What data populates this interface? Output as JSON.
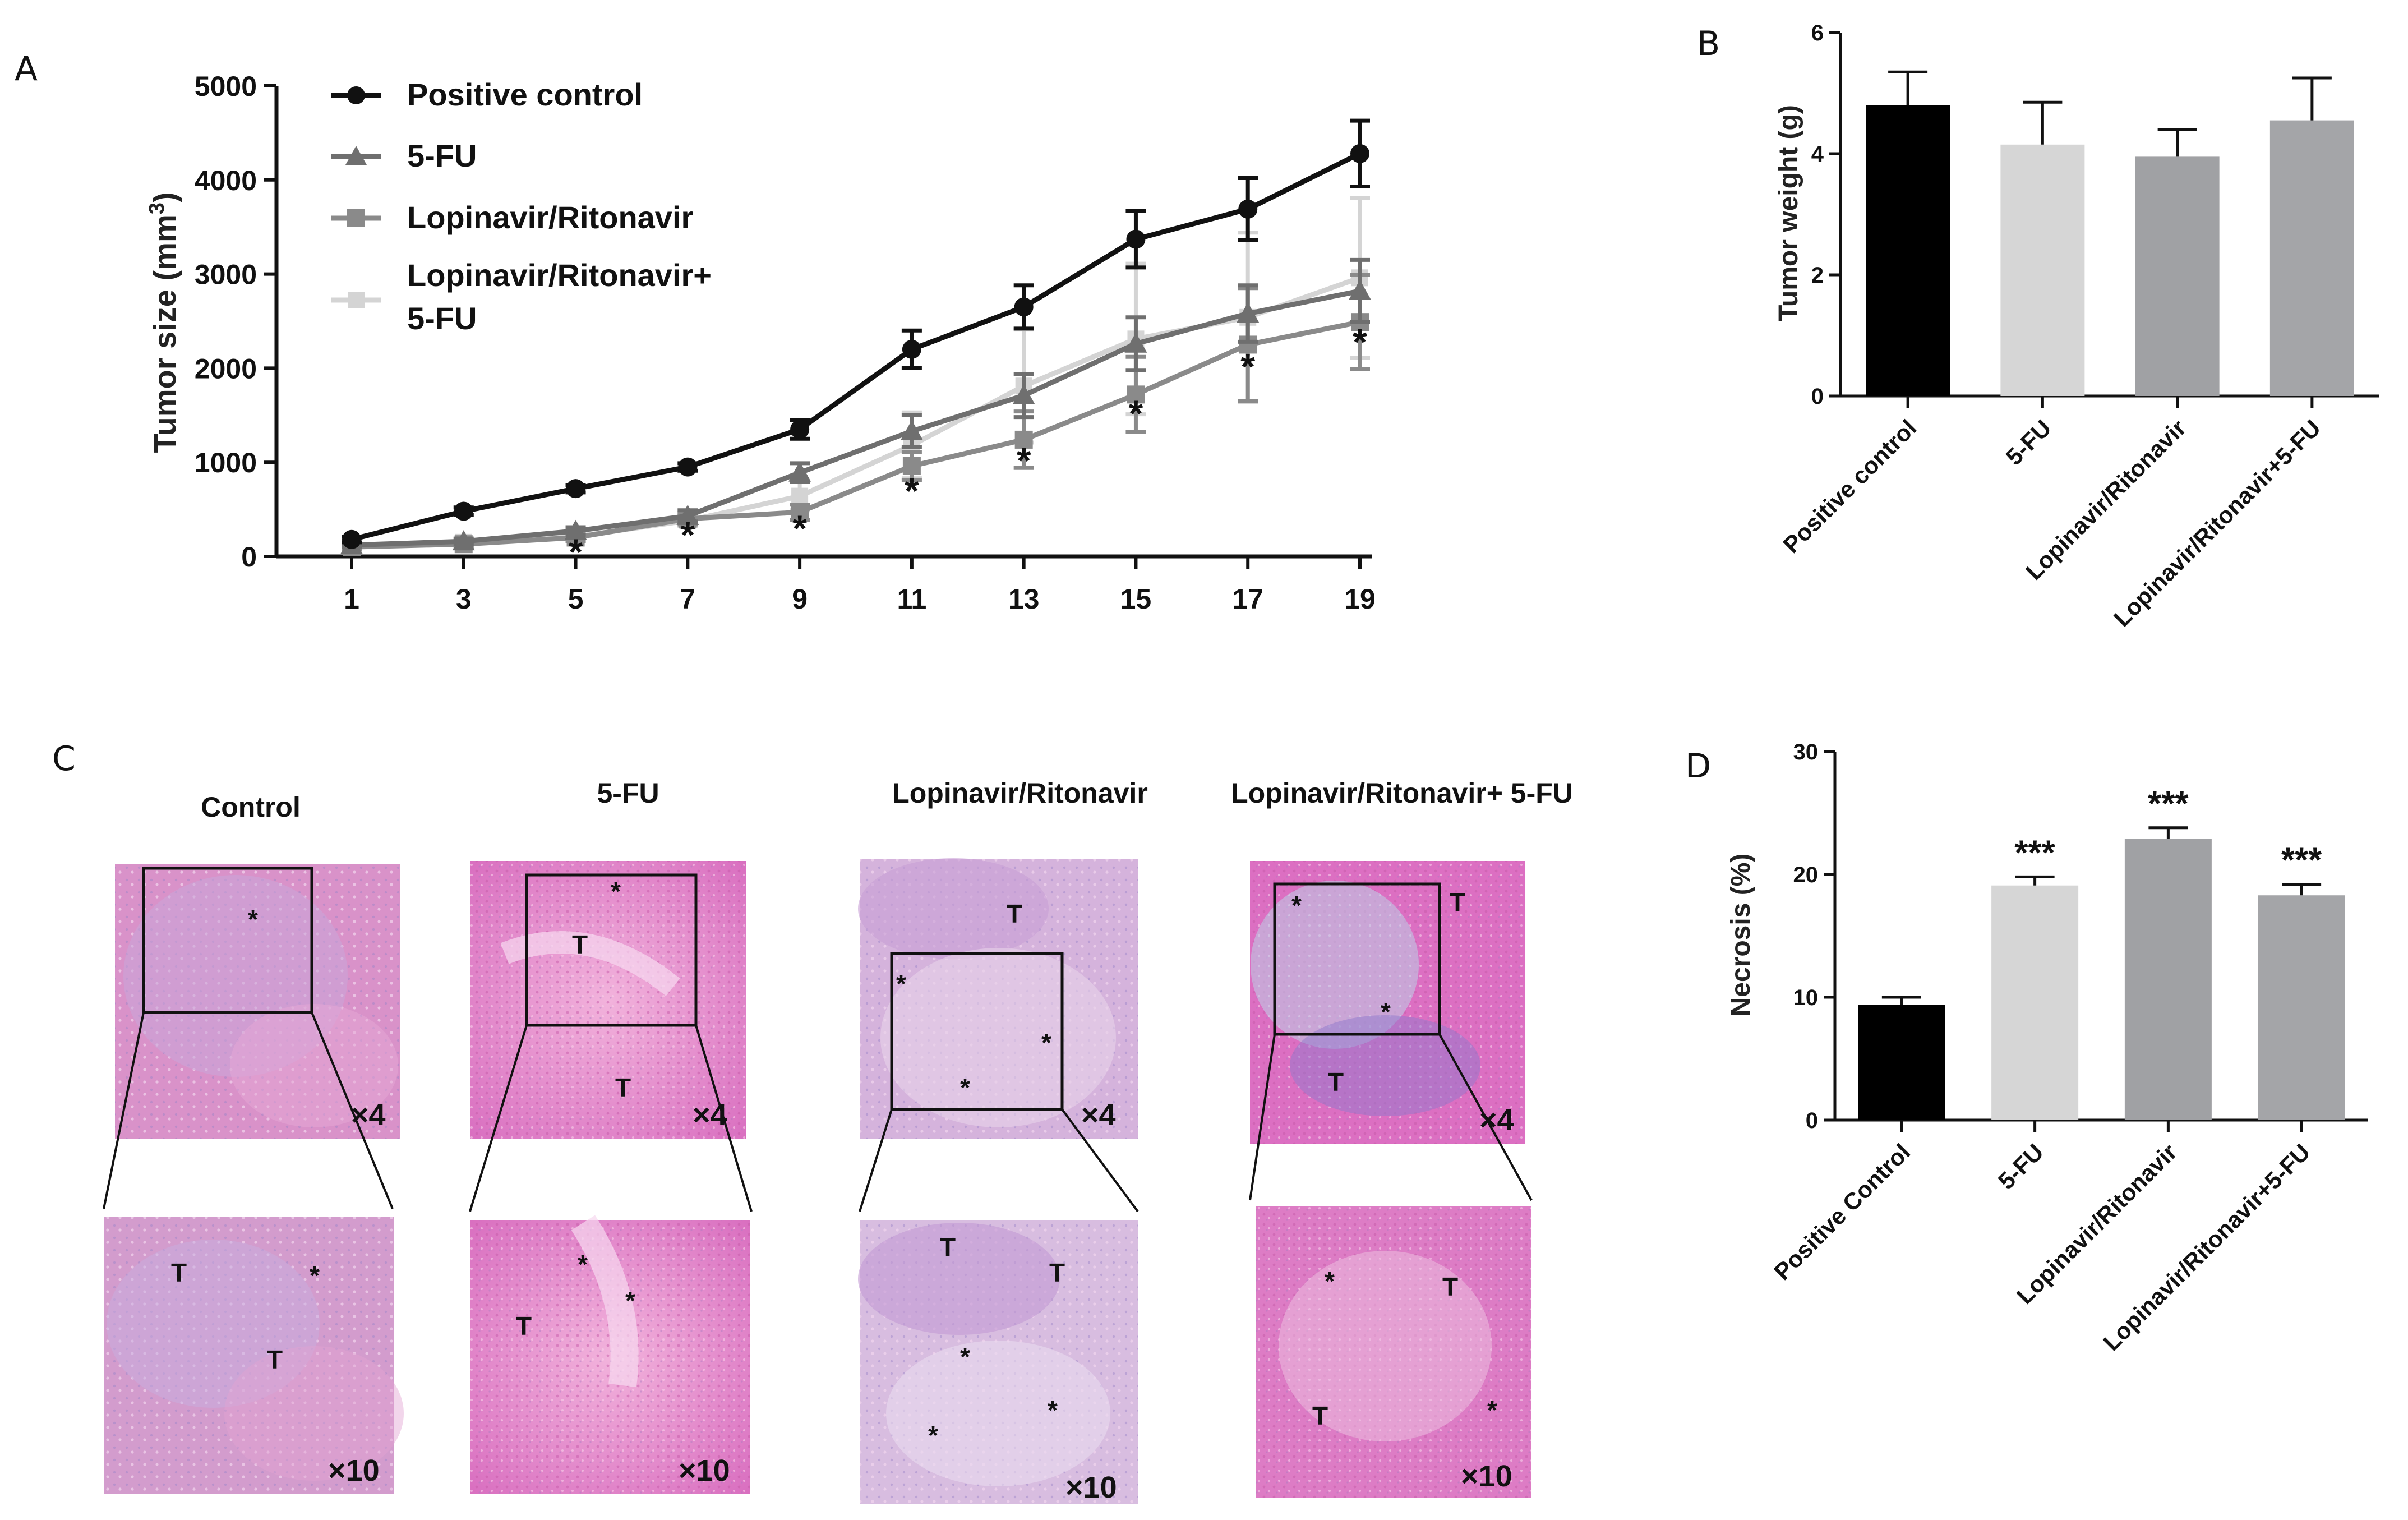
{
  "panels": {
    "a": "A",
    "b": "B",
    "c": "C",
    "d": "D"
  },
  "colors": {
    "positive_control": "#111111",
    "five_fu_line": "#6f6f6f",
    "lopinavir_line": "#8a8a8a",
    "combo_line": "#d4d4d4",
    "bar_black": "#000000",
    "bar_light": "#d6d6d6",
    "bar_mid": "#a0a1a4",
    "bar_gray": "#a4a5a8",
    "he_pink": "#e386c6",
    "he_purple": "#b9a0d6"
  },
  "chart_data": [
    {
      "id": "A",
      "type": "line",
      "title": "",
      "xlabel": "",
      "ylabel_main": "Tumor size (mm",
      "ylabel_sup": "3",
      "ylabel_tail": ")",
      "x": [
        1,
        3,
        5,
        7,
        9,
        11,
        13,
        15,
        17,
        19
      ],
      "xlim": [
        1,
        19
      ],
      "ylim": [
        0,
        5000
      ],
      "yticks": [
        0,
        1000,
        2000,
        3000,
        4000,
        5000
      ],
      "legend_position": "top-left",
      "series": [
        {
          "name": "Positive control",
          "marker": "circle",
          "color": "#111111",
          "values": [
            180,
            480,
            720,
            950,
            1350,
            2200,
            2650,
            3370,
            3690,
            4280
          ],
          "errors": [
            30,
            40,
            40,
            40,
            100,
            200,
            230,
            300,
            330,
            350
          ]
        },
        {
          "name": "5-FU",
          "marker": "triangle",
          "color": "#6f6f6f",
          "values": [
            120,
            160,
            270,
            430,
            890,
            1330,
            1710,
            2260,
            2580,
            2820
          ],
          "errors": [
            20,
            30,
            40,
            60,
            100,
            170,
            230,
            280,
            300,
            330
          ]
        },
        {
          "name": "Lopinavir/Ritonavir",
          "marker": "square",
          "color": "#8a8a8a",
          "values": [
            100,
            130,
            200,
            400,
            470,
            960,
            1240,
            1720,
            2250,
            2490
          ],
          "errors": [
            20,
            30,
            40,
            60,
            80,
            150,
            300,
            400,
            600,
            500
          ]
        },
        {
          "name": "Lopinavir/Ritonavir+",
          "name_line2": "5-FU",
          "marker": "cross",
          "color": "#d4d4d4",
          "values": [
            110,
            150,
            210,
            380,
            640,
            1180,
            1810,
            2310,
            2540,
            2960
          ],
          "errors": [
            20,
            30,
            40,
            60,
            150,
            350,
            600,
            800,
            900,
            850
          ]
        }
      ],
      "annotations": [
        {
          "x": 5,
          "y": 150,
          "text": "*"
        },
        {
          "x": 7,
          "y": 330,
          "text": "*"
        },
        {
          "x": 9,
          "y": 400,
          "text": "*"
        },
        {
          "x": 11,
          "y": 800,
          "text": "*"
        },
        {
          "x": 13,
          "y": 1120,
          "text": "*"
        },
        {
          "x": 15,
          "y": 1620,
          "text": "*"
        },
        {
          "x": 17,
          "y": 2120,
          "text": "*"
        },
        {
          "x": 19,
          "y": 2380,
          "text": "*"
        }
      ]
    },
    {
      "id": "B",
      "type": "bar",
      "ylabel": "Tumor weight (g)",
      "ylim": [
        0,
        6
      ],
      "yticks": [
        0,
        2,
        4,
        6
      ],
      "categories": [
        "Positive control",
        "5-FU",
        "Lopinavir/Ritonavir",
        "Lopinavir/Ritonavir+5-FU"
      ],
      "values": [
        4.8,
        4.15,
        3.95,
        4.55
      ],
      "errors": [
        0.55,
        0.7,
        0.45,
        0.7
      ],
      "bar_colors": [
        "#000000",
        "#d6d6d6",
        "#a0a1a4",
        "#a4a5a8"
      ]
    },
    {
      "id": "D",
      "type": "bar",
      "ylabel": "Necrosis (%)",
      "ylim": [
        0,
        30
      ],
      "yticks": [
        0,
        10,
        20,
        30
      ],
      "categories": [
        "Positive Control",
        "5-FU",
        "Lopinavir/Ritonavir",
        "Lopinavir/Ritonavir+5-FU"
      ],
      "values": [
        9.4,
        19.1,
        22.9,
        18.3
      ],
      "errors": [
        0.6,
        0.7,
        0.9,
        0.9
      ],
      "significance": [
        "",
        "***",
        "***",
        "***"
      ],
      "bar_colors": [
        "#000000",
        "#d6d6d6",
        "#a0a1a4",
        "#a4a5a8"
      ]
    }
  ],
  "histology": {
    "columns": [
      {
        "title": "Control",
        "top": {
          "mag": "×4",
          "T": [],
          "stars": 1
        },
        "bottom": {
          "mag": "×10",
          "T": 2,
          "stars": 1
        }
      },
      {
        "title": "5-FU",
        "top": {
          "mag": "×4",
          "T": 2,
          "stars": 1
        },
        "bottom": {
          "mag": "×10",
          "T": 1,
          "stars": 2
        }
      },
      {
        "title": "Lopinavir/Ritonavir",
        "top": {
          "mag": "×4",
          "T": 1,
          "stars": 3
        },
        "bottom": {
          "mag": "×10",
          "T": 2,
          "stars": 3
        }
      },
      {
        "title": "Lopinavir/Ritonavir+ 5-FU",
        "top": {
          "mag": "×4",
          "T": 2,
          "stars": 2
        },
        "bottom": {
          "mag": "×10",
          "T": 2,
          "stars": 2
        }
      }
    ],
    "labels": {
      "tumor": "T",
      "necrosis": "*"
    }
  }
}
